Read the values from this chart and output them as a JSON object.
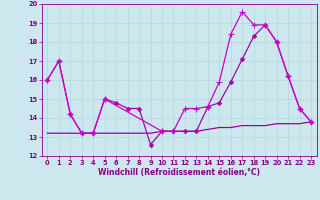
{
  "background_color": "#cce8ee",
  "line1": {
    "x": [
      0,
      1,
      2,
      3,
      4,
      5,
      6,
      7,
      8,
      9,
      10,
      11,
      12,
      13,
      14,
      15,
      16,
      17,
      18,
      19,
      20,
      21,
      22,
      23
    ],
    "y": [
      16,
      17,
      14.2,
      13.2,
      13.2,
      15.0,
      14.8,
      14.5,
      14.5,
      12.6,
      13.3,
      13.3,
      13.3,
      13.3,
      14.6,
      14.8,
      15.9,
      17.1,
      18.3,
      18.9,
      18.0,
      16.2,
      14.5,
      13.8
    ],
    "color": "#aa00aa",
    "marker": "D",
    "markersize": 2.5,
    "linewidth": 0.9
  },
  "line2": {
    "x": [
      0,
      1,
      2,
      3,
      4,
      5,
      10,
      11,
      12,
      13,
      14,
      15,
      16,
      17,
      18,
      19,
      20,
      21,
      22,
      23
    ],
    "y": [
      16,
      17,
      14.2,
      13.2,
      13.2,
      15.0,
      13.3,
      13.3,
      14.5,
      14.5,
      14.6,
      15.9,
      18.4,
      19.6,
      18.9,
      18.9,
      18.0,
      16.2,
      14.5,
      13.8
    ],
    "color": "#cc00cc",
    "marker": "+",
    "markersize": 4,
    "linewidth": 0.9
  },
  "line3": {
    "x": [
      0,
      1,
      2,
      3,
      4,
      5,
      6,
      7,
      8,
      9,
      10,
      11,
      12,
      13,
      14,
      15,
      16,
      17,
      18,
      19,
      20,
      21,
      22,
      23
    ],
    "y": [
      13.2,
      13.2,
      13.2,
      13.2,
      13.2,
      13.2,
      13.2,
      13.2,
      13.2,
      13.2,
      13.3,
      13.3,
      13.3,
      13.3,
      13.4,
      13.5,
      13.5,
      13.6,
      13.6,
      13.6,
      13.7,
      13.7,
      13.7,
      13.8
    ],
    "color": "#990099",
    "linewidth": 0.9
  },
  "xlabel": "Windchill (Refroidissement éolien,°C)",
  "ylabel": "",
  "xlim": [
    -0.5,
    23.5
  ],
  "ylim": [
    12,
    20
  ],
  "yticks": [
    12,
    13,
    14,
    15,
    16,
    17,
    18,
    19,
    20
  ],
  "xticks": [
    0,
    1,
    2,
    3,
    4,
    5,
    6,
    7,
    8,
    9,
    10,
    11,
    12,
    13,
    14,
    15,
    16,
    17,
    18,
    19,
    20,
    21,
    22,
    23
  ],
  "tick_color": "#880088",
  "label_color": "#880088",
  "grid_color": "#b0d8dd",
  "xlabel_fontsize": 5.5,
  "tick_fontsize": 4.8
}
